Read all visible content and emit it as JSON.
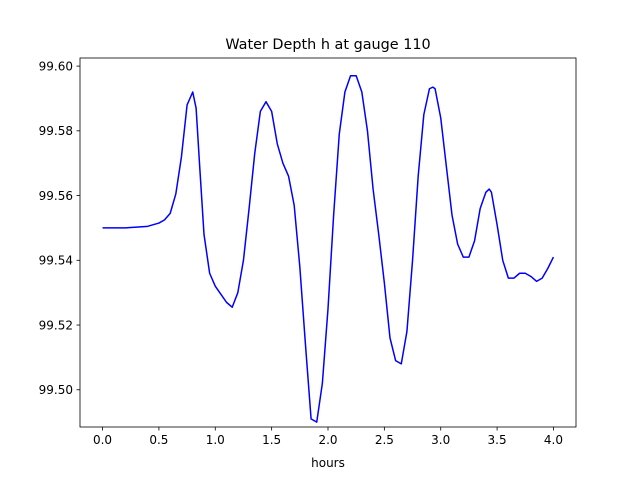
{
  "chart_data": {
    "type": "line",
    "title": "Water Depth h at gauge 110",
    "xlabel": "hours",
    "ylabel": "",
    "xlim": [
      -0.2,
      4.2
    ],
    "ylim": [
      99.4885,
      99.6025
    ],
    "xticks": [
      0.0,
      0.5,
      1.0,
      1.5,
      2.0,
      2.5,
      3.0,
      3.5,
      4.0
    ],
    "xtick_labels": [
      "0.0",
      "0.5",
      "1.0",
      "1.5",
      "2.0",
      "2.5",
      "3.0",
      "3.5",
      "4.0"
    ],
    "yticks": [
      99.5,
      99.52,
      99.54,
      99.56,
      99.58,
      99.6
    ],
    "ytick_labels": [
      "99.50",
      "99.52",
      "99.54",
      "99.56",
      "99.58",
      "99.60"
    ],
    "grid": false,
    "legend": "none",
    "series": [
      {
        "name": "",
        "color": "#0000ff",
        "x": [
          0.0,
          0.2,
          0.4,
          0.5,
          0.55,
          0.6,
          0.65,
          0.7,
          0.75,
          0.8,
          0.83,
          0.86,
          0.9,
          0.95,
          1.0,
          1.05,
          1.1,
          1.15,
          1.2,
          1.25,
          1.3,
          1.35,
          1.4,
          1.45,
          1.5,
          1.55,
          1.6,
          1.65,
          1.7,
          1.75,
          1.8,
          1.85,
          1.9,
          1.95,
          2.0,
          2.05,
          2.1,
          2.15,
          2.2,
          2.25,
          2.3,
          2.35,
          2.4,
          2.45,
          2.5,
          2.55,
          2.6,
          2.65,
          2.7,
          2.75,
          2.8,
          2.85,
          2.9,
          2.93,
          2.95,
          3.0,
          3.05,
          3.1,
          3.15,
          3.2,
          3.25,
          3.3,
          3.35,
          3.4,
          3.43,
          3.45,
          3.5,
          3.55,
          3.6,
          3.65,
          3.7,
          3.75,
          3.8,
          3.85,
          3.9,
          3.95,
          4.0
        ],
        "y": [
          99.55,
          99.55,
          99.5505,
          99.5515,
          99.5525,
          99.5545,
          99.5605,
          99.572,
          99.588,
          99.592,
          99.587,
          99.57,
          99.548,
          99.536,
          99.532,
          99.5295,
          99.527,
          99.5255,
          99.53,
          99.54,
          99.556,
          99.573,
          99.586,
          99.589,
          99.586,
          99.576,
          99.57,
          99.566,
          99.557,
          99.538,
          99.514,
          99.491,
          99.49,
          99.502,
          99.525,
          99.554,
          99.579,
          99.592,
          99.597,
          99.597,
          99.592,
          99.58,
          99.562,
          99.548,
          99.533,
          99.516,
          99.509,
          99.508,
          99.518,
          99.54,
          99.566,
          99.585,
          99.593,
          99.5935,
          99.593,
          99.584,
          99.569,
          99.554,
          99.545,
          99.541,
          99.541,
          99.546,
          99.556,
          99.561,
          99.562,
          99.561,
          99.551,
          99.54,
          99.5345,
          99.5345,
          99.536,
          99.536,
          99.535,
          99.5335,
          99.5345,
          99.5375,
          99.541
        ]
      }
    ]
  }
}
